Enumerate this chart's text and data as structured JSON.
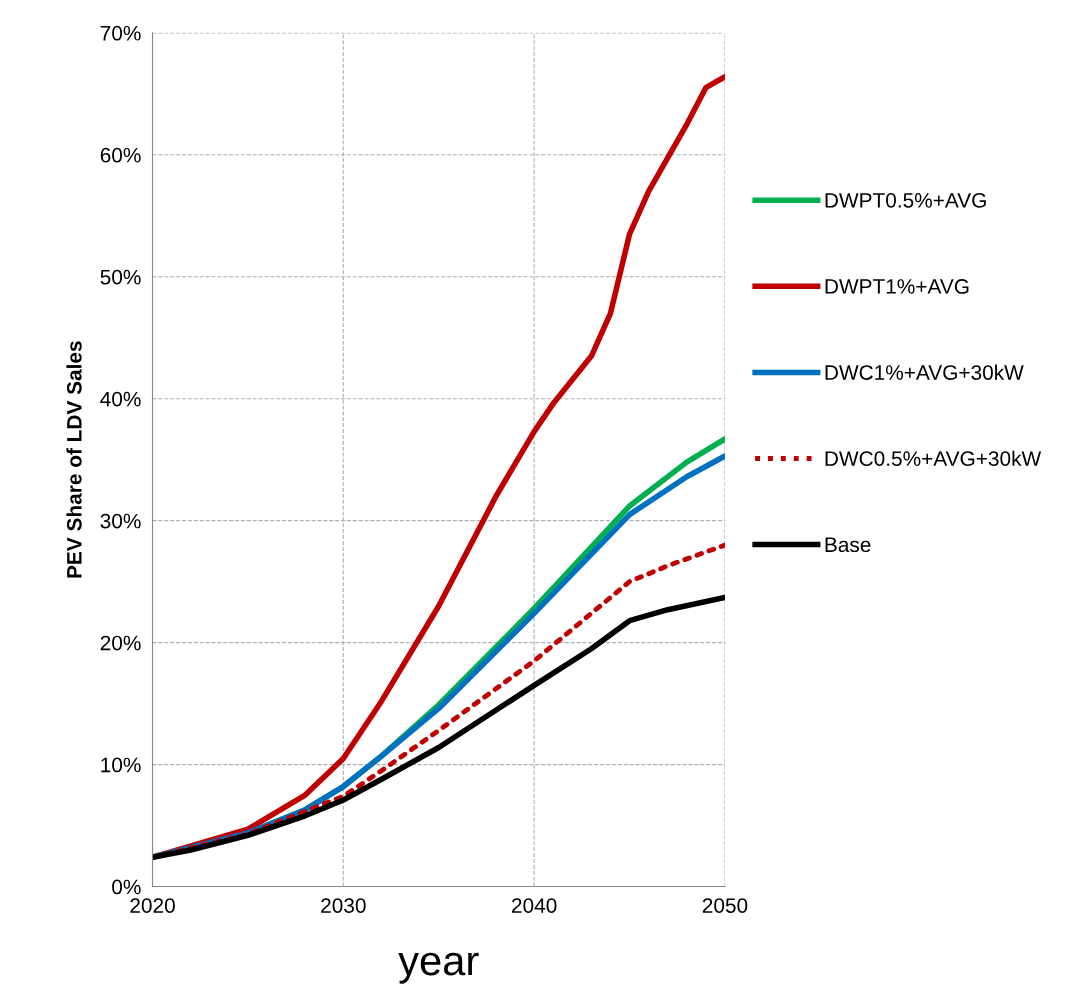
{
  "chart_data": {
    "type": "line",
    "xlabel": "year",
    "ylabel": "PEV Share of LDV Sales",
    "xlim": [
      2020,
      2050
    ],
    "xticks": [
      2020,
      2030,
      2040,
      2050
    ],
    "ylim": [
      0,
      70
    ],
    "yticks": [
      {
        "value": 0,
        "label": "0%"
      },
      {
        "value": 10,
        "label": "10%"
      },
      {
        "value": 20,
        "label": "20%"
      },
      {
        "value": 30,
        "label": "30%"
      },
      {
        "value": 40,
        "label": "40%"
      },
      {
        "value": 50,
        "label": "50%"
      },
      {
        "value": 60,
        "label": "60%"
      },
      {
        "value": 70,
        "label": "70%"
      }
    ],
    "grid": true,
    "legend": "right",
    "marker": "none",
    "series": [
      {
        "name": "DWPT0.5%+AVG",
        "color": "#00b050",
        "x": [
          2020,
          2025,
          2028,
          2030,
          2032,
          2035,
          2040,
          2045,
          2048,
          2050
        ],
        "values": [
          2.4,
          4.4,
          6.3,
          8.2,
          10.7,
          14.9,
          22.8,
          31.2,
          34.8,
          36.7
        ]
      },
      {
        "name": "DWPT1%+AVG",
        "color": "#c00000",
        "x": [
          2020,
          2025,
          2028,
          2030,
          2032,
          2035,
          2038,
          2040,
          2041,
          2043,
          2044,
          2045,
          2046,
          2048,
          2049,
          2050
        ],
        "values": [
          2.4,
          4.7,
          7.5,
          10.5,
          15.2,
          23.0,
          32.0,
          37.3,
          39.6,
          43.5,
          47.0,
          53.5,
          57.0,
          62.5,
          65.5,
          66.4
        ]
      },
      {
        "name": "DWC1%+AVG+30kW",
        "color": "#0070c0",
        "x": [
          2020,
          2025,
          2028,
          2030,
          2032,
          2035,
          2040,
          2045,
          2048,
          2050
        ],
        "values": [
          2.4,
          4.4,
          6.3,
          8.2,
          10.7,
          14.6,
          22.4,
          30.5,
          33.6,
          35.3
        ]
      },
      {
        "name": "DWC0.5%+AVG+30kW",
        "color": "#c00000",
        "line_style": "dotted",
        "x": [
          2020,
          2025,
          2030,
          2032,
          2035,
          2040,
          2045,
          2047,
          2050
        ],
        "values": [
          2.4,
          4.3,
          7.4,
          9.5,
          12.8,
          18.5,
          25.0,
          26.3,
          28.0
        ]
      },
      {
        "name": "Base",
        "color": "#000000",
        "x": [
          2020,
          2022,
          2025,
          2028,
          2030,
          2032,
          2035,
          2040,
          2043,
          2045,
          2047,
          2050
        ],
        "values": [
          2.4,
          3.0,
          4.2,
          5.8,
          7.1,
          8.8,
          11.4,
          16.5,
          19.5,
          21.8,
          22.7,
          23.7
        ]
      }
    ]
  }
}
